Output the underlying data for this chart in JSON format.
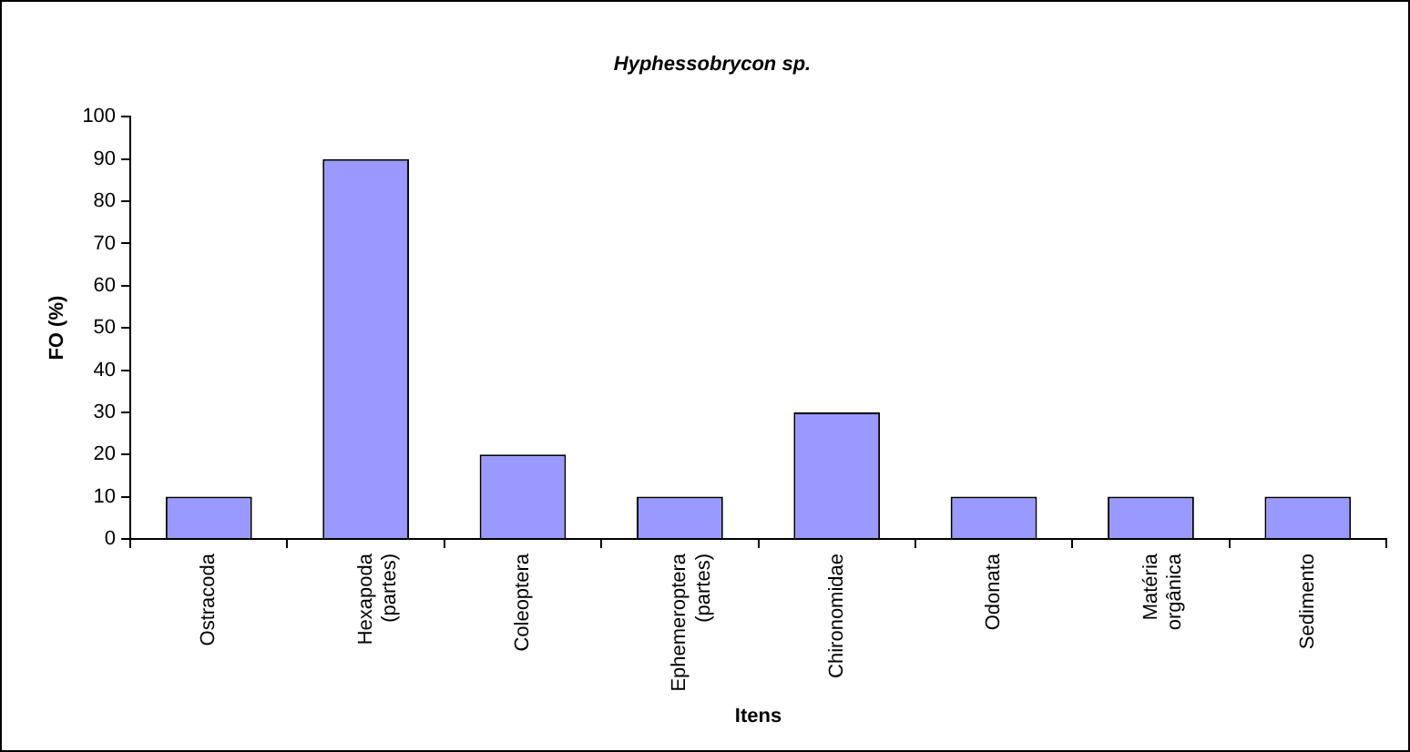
{
  "chart_data": {
    "type": "bar",
    "title": "Hyphessobrycon sp.",
    "xlabel": "Itens",
    "ylabel": "FO (%)",
    "categories": [
      "Ostracoda",
      "Hexapoda (partes)",
      "Coleoptera",
      "Ephemeroptera (partes)",
      "Chironomidae",
      "Odonata",
      "Matéria orgânica",
      "Sedimento"
    ],
    "values": [
      10,
      90,
      20,
      10,
      30,
      10,
      10,
      10
    ],
    "color": "#9999ff",
    "ylim": [
      0,
      100
    ],
    "yticks": [
      0,
      10,
      20,
      30,
      40,
      50,
      60,
      70,
      80,
      90,
      100
    ],
    "grid": false,
    "legend": false
  }
}
